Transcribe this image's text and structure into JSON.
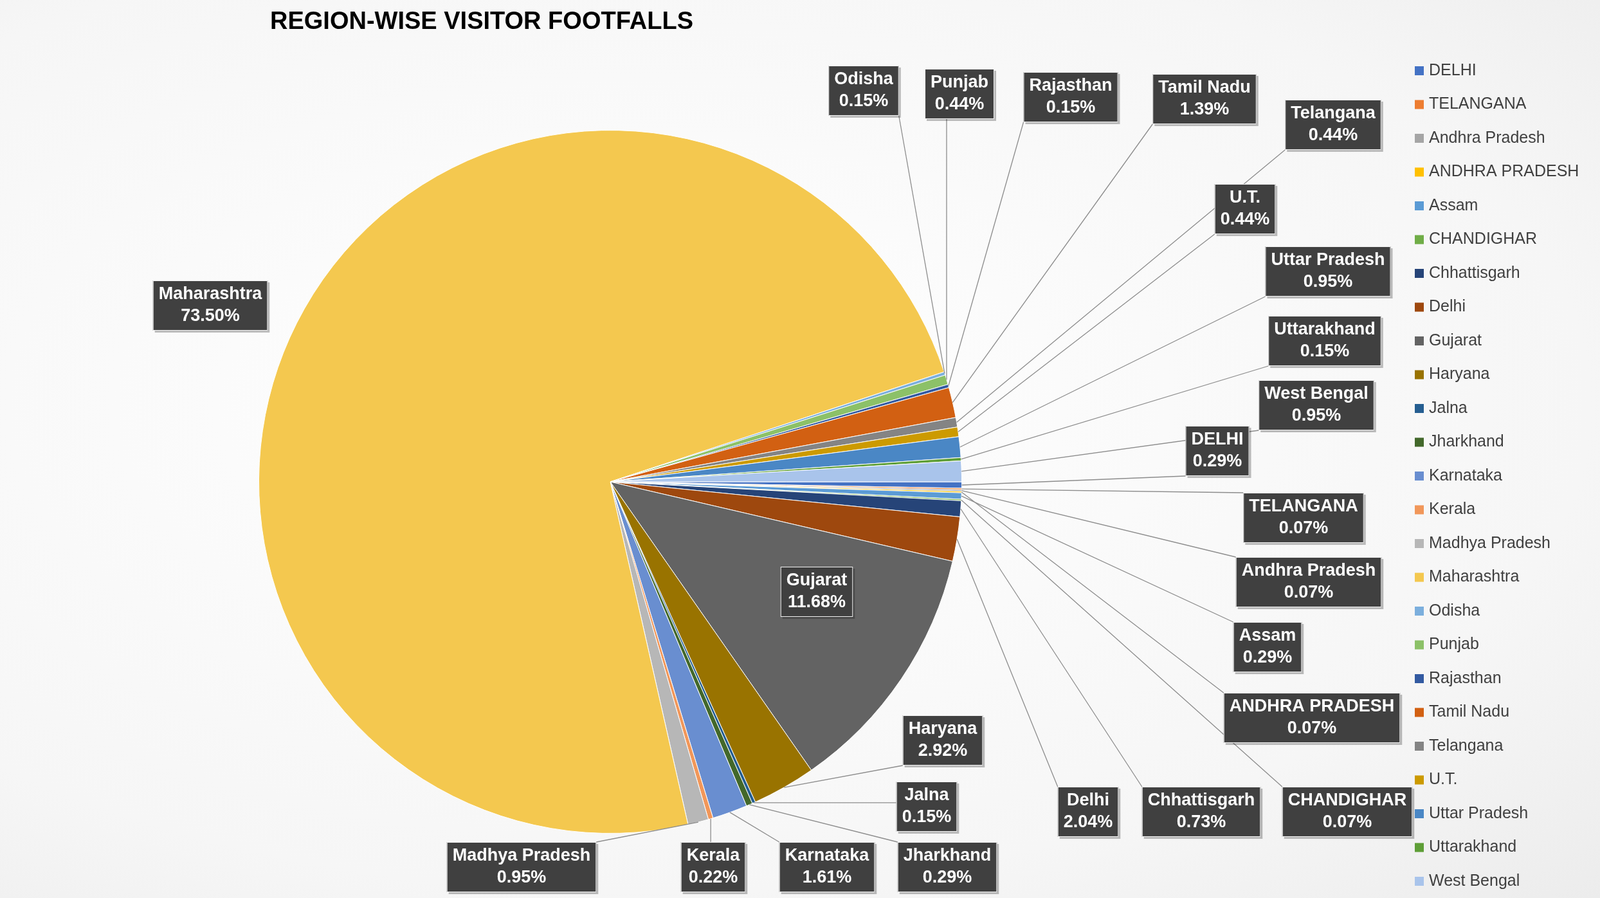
{
  "chart_data": {
    "type": "pie",
    "title": "REGION-WISE VISITOR FOOTFALLS",
    "categories": [
      "DELHI",
      "TELANGANA",
      "Andhra Pradesh",
      "ANDHRA PRADESH",
      "Assam",
      "CHANDIGHAR",
      "Chhattisgarh",
      "Delhi",
      "Gujarat",
      "Haryana",
      "Jalna",
      "Jharkhand",
      "Karnataka",
      "Kerala",
      "Madhya Pradesh",
      "Maharashtra",
      "Odisha",
      "Punjab",
      "Rajasthan",
      "Tamil Nadu",
      "Telangana",
      "U.T.",
      "Uttar Pradesh",
      "Uttarakhand",
      "West Bengal"
    ],
    "values": [
      0.29,
      0.07,
      0.07,
      0.07,
      0.29,
      0.07,
      0.73,
      2.04,
      11.68,
      2.92,
      0.15,
      0.29,
      1.61,
      0.22,
      0.95,
      73.5,
      0.15,
      0.44,
      0.15,
      1.39,
      0.44,
      0.44,
      0.95,
      0.15,
      0.95
    ],
    "value_labels": [
      "0.29%",
      "0.07%",
      "0.07%",
      "0.07%",
      "0.29%",
      "0.07%",
      "0.73%",
      "2.04%",
      "11.68%",
      "2.92%",
      "0.15%",
      "0.29%",
      "1.61%",
      "0.22%",
      "0.95%",
      "73.50%",
      "0.15%",
      "0.44%",
      "0.15%",
      "1.39%",
      "0.44%",
      "0.44%",
      "0.95%",
      "0.15%",
      "0.95%"
    ],
    "colors": [
      "#4472C4",
      "#ED7D31",
      "#A5A5A5",
      "#FFC000",
      "#5B9BD5",
      "#70AD47",
      "#264478",
      "#9E480E",
      "#636363",
      "#997300",
      "#255E91",
      "#43682B",
      "#698ED0",
      "#F1975A",
      "#B7B7B7",
      "#F4C84F",
      "#7CAFDD",
      "#8CC168",
      "#335AA1",
      "#D26012",
      "#848484",
      "#CC9A00",
      "#4A87C5",
      "#5E9E37",
      "#A9C4EB"
    ],
    "data_labels": true,
    "legend": "right"
  }
}
